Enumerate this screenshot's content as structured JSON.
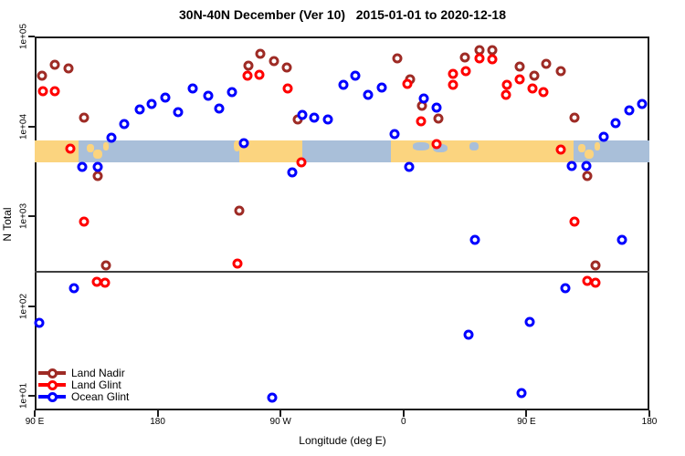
{
  "title": "30N-40N December (Ver 10)   2015-01-01 to 2020-12-18",
  "chart_data": {
    "type": "scatter",
    "title": "30N-40N December (Ver 10)   2015-01-01 to 2020-12-18",
    "xlabel": "Longitude (deg E)",
    "ylabel": "N Total",
    "x_axis": {
      "note": "axis spans 450 degrees of longitude starting at 90E, wrapping eastward",
      "start_deg": 90,
      "end_deg": 540,
      "ticks": [
        {
          "pos": 90,
          "label": "90 E"
        },
        {
          "pos": 180,
          "label": "180"
        },
        {
          "pos": 270,
          "label": "90 W"
        },
        {
          "pos": 360,
          "label": "0"
        },
        {
          "pos": 450,
          "label": "90 E"
        },
        {
          "pos": 540,
          "label": "180"
        }
      ]
    },
    "y_axis": {
      "scale": "log",
      "ticks": [
        {
          "exp": 5,
          "label": "1e+05"
        },
        {
          "exp": 4,
          "label": "1e+04"
        },
        {
          "exp": 3,
          "label": "1e+03"
        },
        {
          "exp": 2,
          "label": "1e+02"
        },
        {
          "exp": 1,
          "label": "1e+01"
        }
      ]
    },
    "reference_line": {
      "n_value": 240
    },
    "map_band": {
      "description": "world-map strip of the 30N-40N latitude band drawn across the plot",
      "n_top": 6970,
      "n_bottom": 3970,
      "ocean_color": "#A9BFD9",
      "land_color": "#FBD47F",
      "land_segments": [
        {
          "d0": 90.0,
          "d1": 122.1,
          "y0": 0,
          "y1": 1
        },
        {
          "d0": 128.1,
          "d1": 133.5,
          "y0": 0.15,
          "y1": 0.55
        },
        {
          "d0": 132.8,
          "d1": 139.5,
          "y0": 0.4,
          "y1": 0.85
        },
        {
          "d0": 140.2,
          "d1": 144.2,
          "y0": 0.1,
          "y1": 0.45
        },
        {
          "d0": 235.8,
          "d1": 240.5,
          "y0": 0,
          "y1": 0.5
        },
        {
          "d0": 239.8,
          "d1": 285.9,
          "y0": 0,
          "y1": 1
        },
        {
          "d0": 350.8,
          "d1": 484.5,
          "y0": 0,
          "y1": 1
        },
        {
          "d0": 488.1,
          "d1": 493.5,
          "y0": 0.15,
          "y1": 0.55
        },
        {
          "d0": 492.8,
          "d1": 499.5,
          "y0": 0.4,
          "y1": 0.85
        },
        {
          "d0": 500.2,
          "d1": 504.2,
          "y0": 0.1,
          "y1": 0.45
        }
      ],
      "ocean_patches": [
        {
          "d0": 366.8,
          "d1": 378.9,
          "y0": 0.08,
          "y1": 0.45
        },
        {
          "d0": 381.5,
          "d1": 392.2,
          "y0": 0.15,
          "y1": 0.55
        },
        {
          "d0": 408.3,
          "d1": 415.0,
          "y0": 0.08,
          "y1": 0.45
        }
      ]
    },
    "series": [
      {
        "name": "Land Nadir",
        "color": "#9E2B25",
        "points": [
          [
            104.7,
            48400
          ],
          [
            114.7,
            44200
          ],
          [
            95.3,
            36600
          ],
          [
            126.1,
            12500
          ],
          [
            136.1,
            2800
          ],
          [
            239.8,
            1150
          ],
          [
            142.2,
            283
          ],
          [
            246.5,
            47300
          ],
          [
            255.2,
            64100
          ],
          [
            265.2,
            53200
          ],
          [
            274.5,
            45200
          ],
          [
            282.6,
            11900
          ],
          [
            355.5,
            57000
          ],
          [
            364.8,
            33300
          ],
          [
            373.5,
            16900
          ],
          [
            385.6,
            12200
          ],
          [
            404.9,
            58500
          ],
          [
            415.6,
            70500
          ],
          [
            425.0,
            70500
          ],
          [
            445.0,
            46200
          ],
          [
            455.7,
            36600
          ],
          [
            464.4,
            49500
          ],
          [
            475.1,
            41100
          ],
          [
            485.2,
            12500
          ],
          [
            494.5,
            2800
          ],
          [
            500.5,
            283
          ]
        ]
      },
      {
        "name": "Land Glint",
        "color": "#FF0000",
        "points": [
          [
            96.0,
            24600
          ],
          [
            104.7,
            24600
          ],
          [
            116.1,
            5630
          ],
          [
            126.1,
            870
          ],
          [
            135.5,
            186
          ],
          [
            141.5,
            182
          ],
          [
            238.4,
            296
          ],
          [
            245.8,
            36600
          ],
          [
            254.5,
            37500
          ],
          [
            275.2,
            26400
          ],
          [
            285.2,
            3970
          ],
          [
            362.8,
            29600
          ],
          [
            372.8,
            11400
          ],
          [
            384.2,
            6340
          ],
          [
            396.2,
            38400
          ],
          [
            396.2,
            29000
          ],
          [
            405.6,
            41100
          ],
          [
            415.6,
            57000
          ],
          [
            425.0,
            55700
          ],
          [
            435.7,
            29000
          ],
          [
            435.0,
            22400
          ],
          [
            445.0,
            33300
          ],
          [
            454.4,
            26400
          ],
          [
            462.4,
            24000
          ],
          [
            475.1,
            5510
          ],
          [
            485.2,
            870
          ],
          [
            494.5,
            190
          ],
          [
            500.5,
            182
          ]
        ]
      },
      {
        "name": "Ocean Glint",
        "color": "#0000FF",
        "points": [
          [
            93.3,
            65
          ],
          [
            118.7,
            158
          ],
          [
            124.8,
            3530
          ],
          [
            136.1,
            3530
          ],
          [
            146.2,
            7460
          ],
          [
            155.5,
            10600
          ],
          [
            166.9,
            15400
          ],
          [
            175.6,
            17700
          ],
          [
            185.6,
            20900
          ],
          [
            195.0,
            14400
          ],
          [
            205.7,
            26400
          ],
          [
            217.0,
            21900
          ],
          [
            225.1,
            15800
          ],
          [
            234.4,
            24000
          ],
          [
            243.1,
            6490
          ],
          [
            263.8,
            9.6
          ],
          [
            278.5,
            3070
          ],
          [
            285.9,
            13400
          ],
          [
            294.6,
            12500
          ],
          [
            304.6,
            11900
          ],
          [
            316.0,
            29000
          ],
          [
            324.7,
            36600
          ],
          [
            334.0,
            22400
          ],
          [
            344.1,
            27000
          ],
          [
            353.5,
            8200
          ],
          [
            364.1,
            3530
          ],
          [
            374.8,
            20400
          ],
          [
            384.2,
            16100
          ],
          [
            407.6,
            48
          ],
          [
            412.3,
            545
          ],
          [
            446.3,
            10.7
          ],
          [
            452.4,
            66
          ],
          [
            478.4,
            158
          ],
          [
            483.2,
            3610
          ],
          [
            493.9,
            3610
          ],
          [
            506.5,
            7640
          ],
          [
            515.2,
            10900
          ],
          [
            525.2,
            15100
          ],
          [
            534.6,
            17700
          ],
          [
            520.0,
            545
          ]
        ]
      }
    ],
    "legend_position": "bottom-left-inside"
  },
  "legend": {
    "items": [
      {
        "label": "Land Nadir",
        "color": "#9E2B25"
      },
      {
        "label": "Land Glint",
        "color": "#FF0000"
      },
      {
        "label": "Ocean Glint",
        "color": "#0000FF"
      }
    ]
  }
}
